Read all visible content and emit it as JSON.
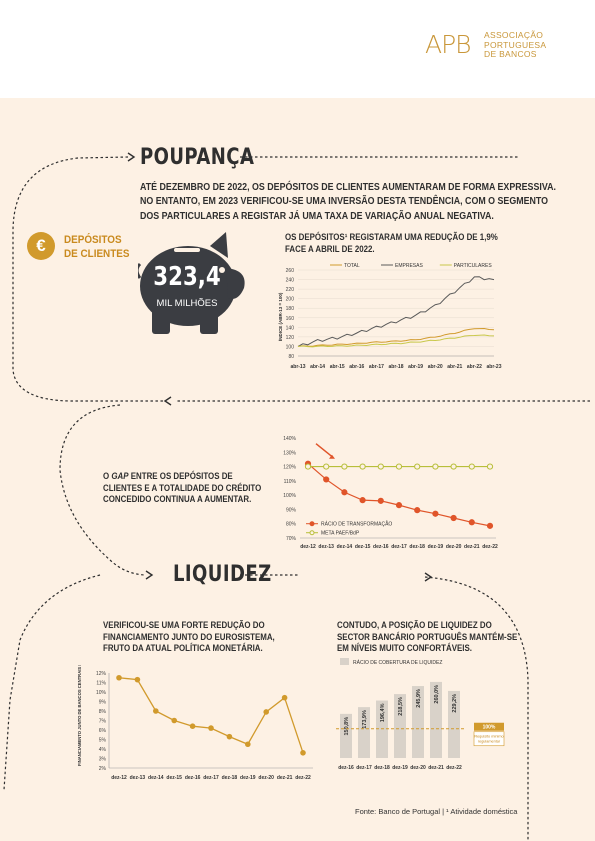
{
  "logo": {
    "mark": "APB",
    "name_lines": [
      "ASSOCIAÇÃO",
      "PORTUGUESA",
      "DE BANCOS"
    ]
  },
  "sections": {
    "poupanca": "POUPANÇA",
    "liquidez": "LIQUIDEZ"
  },
  "intro_lines": [
    "ATÉ DEZEMBRO DE 2022, OS DEPÓSITOS DE CLIENTES AUMENTARAM DE FORMA EXPRESSIVA.",
    "NO ENTANTO, EM 2023 VERIFICOU-SE UMA INVERSÃO DESTA TENDÊNCIA, COM O SEGMENTO",
    "DOS PARTICULARES A REGISTAR JÁ UMA TAXA DE VARIAÇÃO ANUAL NEGATIVA."
  ],
  "deposits": {
    "symbol": "€",
    "label_lines": [
      "DEPÓSITOS",
      "DE CLIENTES"
    ],
    "value": "323,4",
    "unit": "MIL MILHÕES"
  },
  "captions": {
    "chart1": [
      "OS DEPÓSITOS¹ REGISTARAM UMA REDUÇÃO DE 1,9%",
      "FACE A ABRIL DE 2022."
    ],
    "gap": [
      "O GAP ENTRE OS DEPÓSITOS DE",
      "CLIENTES E A TOTALIDADE DO CRÉDITO",
      "CONCEDIDO CONTINUA A AUMENTAR."
    ],
    "eurosystem": [
      "VERIFICOU-SE UMA FORTE REDUÇÃO DO",
      "FINANCIAMENTO JUNTO DO EUROSISTEMA,",
      "FRUTO DA ATUAL POLÍTICA MONETÁRIA."
    ],
    "liquidity": [
      "CONTUDO, A POSIÇÃO DE LIQUIDEZ DO",
      "SECTOR BANCÁRIO PORTUGUÊS MANTÉM-SE",
      "EM NÍVEIS MUITO CONFORTÁVEIS."
    ]
  },
  "footer": {
    "source": "Fonte: Banco de Portugal  |  ¹ Atividade doméstica"
  },
  "colors": {
    "accent": "#d19a2c",
    "dark": "#3b3d42",
    "orange": "#e0552a",
    "olive": "#b8bf3a"
  },
  "chart_data": [
    {
      "type": "line",
      "ylabel": "ÍNDICE (ABR-13 = 100)",
      "ylim": [
        80,
        260
      ],
      "yticks": [
        80,
        100,
        120,
        140,
        160,
        180,
        200,
        220,
        240,
        260
      ],
      "categories": [
        "abr-13",
        "abr-14",
        "abr-15",
        "abr-16",
        "abr-17",
        "abr-18",
        "abr-19",
        "abr-20",
        "abr-21",
        "abr-22",
        "abr-23"
      ],
      "legend_position": "top",
      "series": [
        {
          "name": "TOTAL",
          "color": "#d19a2c",
          "values": [
            100,
            102,
            104,
            106,
            109,
            111,
            114,
            120,
            128,
            138,
            135
          ]
        },
        {
          "name": "EMPRESAS",
          "color": "#5a5a5a",
          "values": [
            100,
            112,
            118,
            128,
            140,
            152,
            165,
            185,
            215,
            245,
            240
          ]
        },
        {
          "name": "PARTICULARES",
          "color": "#c9c84a",
          "values": [
            100,
            100,
            101,
            102,
            104,
            106,
            109,
            113,
            118,
            124,
            122
          ]
        }
      ]
    },
    {
      "type": "line",
      "ylim": [
        70,
        140
      ],
      "ytick_labels": [
        "70%",
        "80%",
        "90%",
        "100%",
        "110%",
        "120%",
        "130%",
        "140%"
      ],
      "yticks": [
        70,
        80,
        90,
        100,
        110,
        120,
        130,
        140
      ],
      "categories": [
        "dez-12",
        "dez-13",
        "dez-14",
        "dez-15",
        "dez-16",
        "dez-17",
        "dez-18",
        "dez-19",
        "dez-20",
        "dez-21",
        "dez-22"
      ],
      "legend_position": "bottom-left",
      "series": [
        {
          "name": "RÁCIO DE TRANSFORMAÇÃO",
          "color": "#e0552a",
          "values": [
            122,
            111,
            102,
            96.5,
            96,
            93,
            89.5,
            87,
            84,
            81,
            78.5
          ]
        },
        {
          "name": "META PAEF/BdP",
          "color": "#b8bf3a",
          "values": [
            120,
            120,
            120,
            120,
            120,
            120,
            120,
            120,
            120,
            120,
            120
          ]
        }
      ]
    },
    {
      "type": "line",
      "ylabel": "FINANCIAMENTO JUNTO DE BANCOS CENTRAIS EM % DO ATIVO",
      "ylim": [
        2,
        12
      ],
      "yticks": [
        2,
        3,
        4,
        5,
        6,
        7,
        8,
        9,
        10,
        11,
        12
      ],
      "ytick_labels": [
        "2%",
        "3%",
        "4%",
        "5%",
        "6%",
        "7%",
        "8%",
        "9%",
        "10%",
        "11%",
        "12%"
      ],
      "categories": [
        "dez-12",
        "dez-13",
        "dez-14",
        "dez-15",
        "dez-16",
        "dez-17",
        "dez-18",
        "dez-19",
        "dez-20",
        "dez-21",
        "dez-22"
      ],
      "series": [
        {
          "color": "#d19a2c",
          "values": [
            11.5,
            11.3,
            8.0,
            7.0,
            6.4,
            6.2,
            5.3,
            4.5,
            7.9,
            9.4,
            3.6
          ]
        }
      ]
    },
    {
      "type": "bar",
      "legend": "RÁCIO DE COBERTURA DE LIQUIDEZ",
      "categories": [
        "dez-16",
        "dez-17",
        "dez-18",
        "dez-19",
        "dez-20",
        "dez-21",
        "dez-22"
      ],
      "values": [
        150.8,
        173.9,
        196.4,
        218.5,
        245.9,
        260.0,
        229.2
      ],
      "value_labels": [
        "150,8%",
        "173,9%",
        "196,4%",
        "218,5%",
        "245,9%",
        "260,0%",
        "229,2%"
      ],
      "ylim": [
        0,
        270
      ],
      "reference_line": {
        "value": 100,
        "label": "100%",
        "note_lines": [
          "Requisito mínimo",
          "regulamentar"
        ]
      }
    }
  ]
}
